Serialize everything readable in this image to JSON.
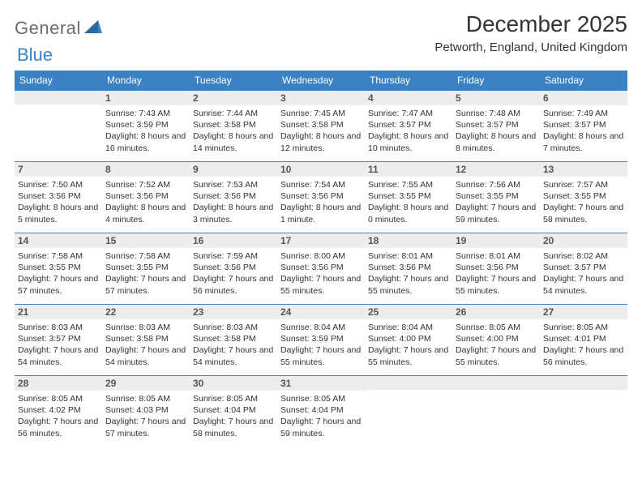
{
  "logo": {
    "text1": "General",
    "text2": "Blue"
  },
  "title": "December 2025",
  "location": "Petworth, England, United Kingdom",
  "colors": {
    "brand_blue": "#3b82c4",
    "header_text": "#ffffff",
    "daynum_bg": "#ededed",
    "body_text": "#333333",
    "logo_gray": "#6b6b6b"
  },
  "weekdays": [
    "Sunday",
    "Monday",
    "Tuesday",
    "Wednesday",
    "Thursday",
    "Friday",
    "Saturday"
  ],
  "weeks": [
    [
      {
        "day": "",
        "sunrise": "",
        "sunset": "",
        "daylight": ""
      },
      {
        "day": "1",
        "sunrise": "Sunrise: 7:43 AM",
        "sunset": "Sunset: 3:59 PM",
        "daylight": "Daylight: 8 hours and 16 minutes."
      },
      {
        "day": "2",
        "sunrise": "Sunrise: 7:44 AM",
        "sunset": "Sunset: 3:58 PM",
        "daylight": "Daylight: 8 hours and 14 minutes."
      },
      {
        "day": "3",
        "sunrise": "Sunrise: 7:45 AM",
        "sunset": "Sunset: 3:58 PM",
        "daylight": "Daylight: 8 hours and 12 minutes."
      },
      {
        "day": "4",
        "sunrise": "Sunrise: 7:47 AM",
        "sunset": "Sunset: 3:57 PM",
        "daylight": "Daylight: 8 hours and 10 minutes."
      },
      {
        "day": "5",
        "sunrise": "Sunrise: 7:48 AM",
        "sunset": "Sunset: 3:57 PM",
        "daylight": "Daylight: 8 hours and 8 minutes."
      },
      {
        "day": "6",
        "sunrise": "Sunrise: 7:49 AM",
        "sunset": "Sunset: 3:57 PM",
        "daylight": "Daylight: 8 hours and 7 minutes."
      }
    ],
    [
      {
        "day": "7",
        "sunrise": "Sunrise: 7:50 AM",
        "sunset": "Sunset: 3:56 PM",
        "daylight": "Daylight: 8 hours and 5 minutes."
      },
      {
        "day": "8",
        "sunrise": "Sunrise: 7:52 AM",
        "sunset": "Sunset: 3:56 PM",
        "daylight": "Daylight: 8 hours and 4 minutes."
      },
      {
        "day": "9",
        "sunrise": "Sunrise: 7:53 AM",
        "sunset": "Sunset: 3:56 PM",
        "daylight": "Daylight: 8 hours and 3 minutes."
      },
      {
        "day": "10",
        "sunrise": "Sunrise: 7:54 AM",
        "sunset": "Sunset: 3:56 PM",
        "daylight": "Daylight: 8 hours and 1 minute."
      },
      {
        "day": "11",
        "sunrise": "Sunrise: 7:55 AM",
        "sunset": "Sunset: 3:55 PM",
        "daylight": "Daylight: 8 hours and 0 minutes."
      },
      {
        "day": "12",
        "sunrise": "Sunrise: 7:56 AM",
        "sunset": "Sunset: 3:55 PM",
        "daylight": "Daylight: 7 hours and 59 minutes."
      },
      {
        "day": "13",
        "sunrise": "Sunrise: 7:57 AM",
        "sunset": "Sunset: 3:55 PM",
        "daylight": "Daylight: 7 hours and 58 minutes."
      }
    ],
    [
      {
        "day": "14",
        "sunrise": "Sunrise: 7:58 AM",
        "sunset": "Sunset: 3:55 PM",
        "daylight": "Daylight: 7 hours and 57 minutes."
      },
      {
        "day": "15",
        "sunrise": "Sunrise: 7:58 AM",
        "sunset": "Sunset: 3:55 PM",
        "daylight": "Daylight: 7 hours and 57 minutes."
      },
      {
        "day": "16",
        "sunrise": "Sunrise: 7:59 AM",
        "sunset": "Sunset: 3:56 PM",
        "daylight": "Daylight: 7 hours and 56 minutes."
      },
      {
        "day": "17",
        "sunrise": "Sunrise: 8:00 AM",
        "sunset": "Sunset: 3:56 PM",
        "daylight": "Daylight: 7 hours and 55 minutes."
      },
      {
        "day": "18",
        "sunrise": "Sunrise: 8:01 AM",
        "sunset": "Sunset: 3:56 PM",
        "daylight": "Daylight: 7 hours and 55 minutes."
      },
      {
        "day": "19",
        "sunrise": "Sunrise: 8:01 AM",
        "sunset": "Sunset: 3:56 PM",
        "daylight": "Daylight: 7 hours and 55 minutes."
      },
      {
        "day": "20",
        "sunrise": "Sunrise: 8:02 AM",
        "sunset": "Sunset: 3:57 PM",
        "daylight": "Daylight: 7 hours and 54 minutes."
      }
    ],
    [
      {
        "day": "21",
        "sunrise": "Sunrise: 8:03 AM",
        "sunset": "Sunset: 3:57 PM",
        "daylight": "Daylight: 7 hours and 54 minutes."
      },
      {
        "day": "22",
        "sunrise": "Sunrise: 8:03 AM",
        "sunset": "Sunset: 3:58 PM",
        "daylight": "Daylight: 7 hours and 54 minutes."
      },
      {
        "day": "23",
        "sunrise": "Sunrise: 8:03 AM",
        "sunset": "Sunset: 3:58 PM",
        "daylight": "Daylight: 7 hours and 54 minutes."
      },
      {
        "day": "24",
        "sunrise": "Sunrise: 8:04 AM",
        "sunset": "Sunset: 3:59 PM",
        "daylight": "Daylight: 7 hours and 55 minutes."
      },
      {
        "day": "25",
        "sunrise": "Sunrise: 8:04 AM",
        "sunset": "Sunset: 4:00 PM",
        "daylight": "Daylight: 7 hours and 55 minutes."
      },
      {
        "day": "26",
        "sunrise": "Sunrise: 8:05 AM",
        "sunset": "Sunset: 4:00 PM",
        "daylight": "Daylight: 7 hours and 55 minutes."
      },
      {
        "day": "27",
        "sunrise": "Sunrise: 8:05 AM",
        "sunset": "Sunset: 4:01 PM",
        "daylight": "Daylight: 7 hours and 56 minutes."
      }
    ],
    [
      {
        "day": "28",
        "sunrise": "Sunrise: 8:05 AM",
        "sunset": "Sunset: 4:02 PM",
        "daylight": "Daylight: 7 hours and 56 minutes."
      },
      {
        "day": "29",
        "sunrise": "Sunrise: 8:05 AM",
        "sunset": "Sunset: 4:03 PM",
        "daylight": "Daylight: 7 hours and 57 minutes."
      },
      {
        "day": "30",
        "sunrise": "Sunrise: 8:05 AM",
        "sunset": "Sunset: 4:04 PM",
        "daylight": "Daylight: 7 hours and 58 minutes."
      },
      {
        "day": "31",
        "sunrise": "Sunrise: 8:05 AM",
        "sunset": "Sunset: 4:04 PM",
        "daylight": "Daylight: 7 hours and 59 minutes."
      },
      {
        "day": "",
        "sunrise": "",
        "sunset": "",
        "daylight": ""
      },
      {
        "day": "",
        "sunrise": "",
        "sunset": "",
        "daylight": ""
      },
      {
        "day": "",
        "sunrise": "",
        "sunset": "",
        "daylight": ""
      }
    ]
  ]
}
